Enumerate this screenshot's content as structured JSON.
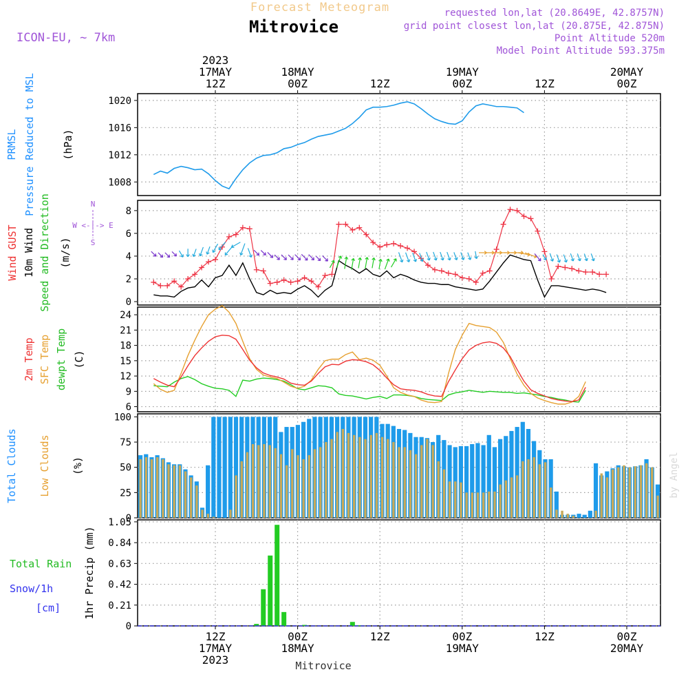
{
  "header": {
    "super_title": "Forecast Meteogram",
    "location": "Mitrovice",
    "model": "ICON-EU, ~ 7km",
    "requested": "requested lon,lat (20.8649E, 42.8757N)",
    "grid_point": "grid point closest lon,lat (20.875E, 42.875N)",
    "point_alt": "Point Altitude 520m",
    "model_alt": "Model Point Altitude 593.375m",
    "footer_location": "Mitrovice",
    "credit": "by Angel"
  },
  "time_axis": {
    "hours_total": 64,
    "top_labels": [
      {
        "h": 9,
        "lines": [
          "2023",
          "17MAY",
          "12Z"
        ]
      },
      {
        "h": 21,
        "lines": [
          "18MAY",
          "00Z"
        ]
      },
      {
        "h": 33,
        "lines": [
          "12Z"
        ]
      },
      {
        "h": 45,
        "lines": [
          "19MAY",
          "00Z"
        ]
      },
      {
        "h": 57,
        "lines": [
          "12Z"
        ]
      },
      {
        "h": 69,
        "lines": [
          "20MAY",
          "00Z"
        ]
      }
    ],
    "bottom_labels": [
      {
        "h": 9,
        "lines": [
          "12Z",
          "17MAY",
          "2023"
        ]
      },
      {
        "h": 21,
        "lines": [
          "00Z",
          "18MAY"
        ]
      },
      {
        "h": 33,
        "lines": [
          "12Z"
        ]
      },
      {
        "h": 45,
        "lines": [
          "00Z",
          "19MAY"
        ]
      },
      {
        "h": 57,
        "lines": [
          "12Z"
        ]
      },
      {
        "h": 69,
        "lines": [
          "00Z",
          "20MAY"
        ]
      }
    ]
  },
  "panel_labels": {
    "pressure": {
      "lines": [
        [
          "PRMSL",
          "#1e90ff"
        ],
        [
          "Pressure Reduced to MSL",
          "#1e90ff"
        ],
        [
          "(hPa)",
          "#000000"
        ]
      ]
    },
    "wind": {
      "lines": [
        [
          "Wind GUST",
          "#ee3333"
        ],
        [
          "10m Wind",
          "#000000"
        ],
        [
          "Speed and Direction",
          "#22bb22"
        ],
        [
          "(m/s)",
          "#000000"
        ]
      ],
      "compass": "W <-|-> E",
      "compass_n": "N",
      "compass_s": "S"
    },
    "temp": {
      "lines": [
        [
          "2m Temp",
          "#ee3333"
        ],
        [
          "SFC Temp",
          "#e6a030"
        ],
        [
          "dewpt Temp",
          "#22bb22"
        ],
        [
          "(C)",
          "#000000"
        ]
      ]
    },
    "clouds": {
      "lines": [
        [
          "Total Clouds",
          "#1e90ff"
        ],
        [
          "Low Clouds",
          "#e6a030"
        ],
        [
          "(%)",
          "#000000"
        ]
      ]
    },
    "precip": {
      "total_rain": "Total  Rain",
      "snow": "Snow/1h",
      "snow_unit": "[cm]",
      "ylabel": "1hr Precip (mm)"
    }
  },
  "colors": {
    "pressure": "#1e9bea",
    "gust": "#ee3344",
    "wind": "#000000",
    "t2m": "#ee3333",
    "tsfc": "#e6a030",
    "dewpt": "#22cc22",
    "total_clouds": "#1e9bea",
    "low_clouds": "#c8aa5a",
    "rain": "#22cc22",
    "snow": "#3333ee"
  },
  "chart_data": [
    {
      "type": "line",
      "panel": "pressure",
      "ylim": [
        1006,
        1021
      ],
      "yticks": [
        "1008",
        "1012",
        "1016",
        "1020"
      ],
      "series": [
        {
          "name": "PRMSL",
          "values": [
            1009.1,
            1009.6,
            1009.3,
            1010.0,
            1010.3,
            1010.1,
            1009.8,
            1009.9,
            1009.2,
            1008.2,
            1007.4,
            1007.0,
            1008.5,
            1009.8,
            1010.8,
            1011.5,
            1011.9,
            1012.0,
            1012.3,
            1012.9,
            1013.1,
            1013.5,
            1013.8,
            1014.3,
            1014.7,
            1014.9,
            1015.1,
            1015.5,
            1015.9,
            1016.6,
            1017.5,
            1018.6,
            1019.0,
            1019.0,
            1019.1,
            1019.3,
            1019.6,
            1019.8,
            1019.5,
            1018.8,
            1018.0,
            1017.3,
            1016.9,
            1016.6,
            1016.5,
            1017.0,
            1018.3,
            1019.2,
            1019.5,
            1019.3,
            1019.1,
            1019.1,
            1019.0,
            1018.9,
            1018.2
          ]
        }
      ]
    },
    {
      "type": "line",
      "panel": "wind",
      "ylim": [
        -0.3,
        8.9
      ],
      "yticks": [
        "0",
        "2",
        "4",
        "6",
        "8"
      ],
      "series": [
        {
          "name": "Wind GUST",
          "values": [
            1.7,
            1.4,
            1.4,
            1.8,
            1.3,
            2.0,
            2.4,
            3.0,
            3.5,
            3.7,
            4.8,
            5.7,
            5.9,
            6.5,
            6.4,
            2.8,
            2.7,
            1.6,
            1.7,
            1.9,
            1.7,
            1.8,
            2.1,
            1.8,
            1.3,
            2.3,
            2.4,
            6.8,
            6.8,
            6.3,
            6.5,
            5.9,
            5.2,
            4.8,
            5.0,
            5.1,
            4.9,
            4.7,
            4.4,
            3.8,
            3.2,
            2.8,
            2.7,
            2.5,
            2.4,
            2.1,
            2.0,
            1.7,
            2.5,
            2.7,
            4.6,
            6.8,
            8.1,
            8.0,
            7.5,
            7.3,
            6.2,
            4.4,
            2.0,
            3.1,
            3.0,
            2.9,
            2.7,
            2.6,
            2.6,
            2.4,
            2.4
          ]
        },
        {
          "name": "10m Wind",
          "values": [
            0.6,
            0.5,
            0.5,
            0.4,
            0.9,
            1.2,
            1.3,
            1.9,
            1.3,
            2.1,
            2.3,
            3.2,
            2.3,
            3.4,
            2.0,
            0.8,
            0.6,
            1.0,
            0.7,
            0.8,
            0.7,
            1.1,
            1.4,
            1.0,
            0.4,
            1.0,
            1.4,
            3.6,
            3.2,
            2.9,
            2.5,
            2.9,
            2.4,
            2.2,
            2.7,
            2.1,
            2.4,
            2.2,
            1.9,
            1.7,
            1.6,
            1.6,
            1.5,
            1.5,
            1.3,
            1.2,
            1.1,
            1.0,
            1.1,
            1.8,
            2.6,
            3.4,
            4.1,
            3.9,
            3.7,
            3.6,
            1.9,
            0.4,
            1.4,
            1.4,
            1.3,
            1.2,
            1.1,
            1.0,
            1.1,
            1.0,
            0.8
          ]
        }
      ],
      "arrows": {
        "x": [
          0,
          1,
          2,
          3,
          4,
          5,
          6,
          7,
          8,
          9,
          10,
          11,
          12,
          13,
          14,
          15,
          16,
          17,
          18,
          19,
          20,
          21,
          22,
          23,
          24,
          25,
          26,
          27,
          28,
          29,
          30,
          31,
          32,
          33,
          34,
          35,
          36,
          37,
          38,
          39,
          40,
          41,
          42,
          43,
          44,
          45,
          46,
          47,
          48,
          49,
          50,
          51,
          52,
          53,
          54,
          55,
          56,
          57,
          58,
          59,
          60,
          61,
          62,
          63,
          64
        ],
        "level": [
          4.2,
          4.1,
          4.1,
          4.2,
          4.2,
          4.3,
          4.3,
          4.4,
          4.5,
          4.7,
          4.9,
          4.5,
          5.0,
          4.6,
          4.3,
          4.3,
          4.3,
          4.1,
          3.9,
          3.9,
          3.9,
          3.9,
          3.9,
          3.9,
          3.8,
          3.8,
          3.3,
          3.5,
          3.4,
          3.3,
          3.4,
          3.4,
          3.4,
          3.3,
          3.3,
          3.4,
          3.9,
          3.9,
          3.9,
          3.9,
          4.0,
          4.0,
          4.0,
          4.0,
          4.0,
          4.0,
          4.0,
          4.1,
          4.3,
          4.3,
          4.3,
          4.3,
          4.3,
          4.3,
          4.2,
          4.1,
          3.9,
          3.9,
          3.9,
          3.8,
          3.8,
          3.9,
          3.9,
          3.9,
          3.9
        ],
        "dir_deg": [
          135,
          135,
          135,
          135,
          150,
          180,
          200,
          200,
          200,
          210,
          220,
          220,
          240,
          200,
          160,
          135,
          135,
          135,
          135,
          135,
          135,
          135,
          135,
          135,
          135,
          135,
          30,
          20,
          10,
          10,
          10,
          10,
          10,
          10,
          20,
          30,
          160,
          160,
          160,
          160,
          160,
          160,
          160,
          160,
          160,
          160,
          160,
          170,
          90,
          90,
          90,
          90,
          90,
          90,
          100,
          110,
          140,
          150,
          160,
          160,
          160,
          160,
          160,
          160,
          160
        ]
      }
    },
    {
      "type": "line",
      "panel": "temp",
      "ylim": [
        5,
        25.5
      ],
      "yticks": [
        "6",
        "9",
        "12",
        "15",
        "18",
        "21",
        "24"
      ],
      "series": [
        {
          "name": "2m Temp",
          "values": [
            11.5,
            10.8,
            10.2,
            9.9,
            11.8,
            14.0,
            16.0,
            17.5,
            18.8,
            19.7,
            20.0,
            19.9,
            19.2,
            17.2,
            15.1,
            13.6,
            12.6,
            12.1,
            11.8,
            11.4,
            10.6,
            10.3,
            10.2,
            11.0,
            12.5,
            13.8,
            14.3,
            14.2,
            14.9,
            15.2,
            15.1,
            14.8,
            14.2,
            13.1,
            11.6,
            10.3,
            9.5,
            9.3,
            9.2,
            8.9,
            8.4,
            8.1,
            8.0,
            10.9,
            13.2,
            15.4,
            17.1,
            18.0,
            18.5,
            18.7,
            18.4,
            17.5,
            15.8,
            13.3,
            11.0,
            9.3,
            8.6,
            8.1,
            7.6,
            7.3,
            7.1,
            7.0,
            7.3,
            9.8
          ]
        },
        {
          "name": "SFC Temp",
          "values": [
            10.5,
            9.4,
            8.8,
            9.2,
            12.5,
            16.0,
            19.0,
            21.7,
            24.0,
            25.1,
            25.8,
            24.5,
            22.3,
            18.8,
            15.4,
            13.3,
            12.2,
            11.8,
            11.5,
            10.8,
            10.0,
            9.6,
            10.0,
            11.2,
            13.3,
            15.0,
            15.3,
            15.3,
            16.2,
            16.7,
            15.2,
            15.5,
            15.1,
            14.1,
            12.0,
            9.7,
            8.8,
            8.3,
            8.0,
            7.3,
            6.9,
            6.8,
            7.0,
            12.5,
            17.2,
            20.0,
            22.3,
            21.9,
            21.7,
            21.5,
            20.6,
            18.6,
            15.4,
            12.4,
            10.2,
            8.6,
            7.7,
            7.2,
            6.8,
            6.5,
            6.5,
            6.9,
            8.0,
            10.9
          ]
        },
        {
          "name": "dewpt Temp",
          "values": [
            10.1,
            10.0,
            9.9,
            10.8,
            11.5,
            11.9,
            11.3,
            10.5,
            10.0,
            9.6,
            9.5,
            9.2,
            8.0,
            11.2,
            11.0,
            11.4,
            11.6,
            11.5,
            11.3,
            11.0,
            10.3,
            9.5,
            9.3,
            9.7,
            10.1,
            10.0,
            9.7,
            8.5,
            8.2,
            8.1,
            7.8,
            7.5,
            7.8,
            8.0,
            7.6,
            8.3,
            8.3,
            8.2,
            8.0,
            7.6,
            7.4,
            7.3,
            7.2,
            8.3,
            8.7,
            8.9,
            9.2,
            9.0,
            8.8,
            9.0,
            8.9,
            8.8,
            8.8,
            8.6,
            8.7,
            8.5,
            8.3,
            8.0,
            7.8,
            7.5,
            7.3,
            7.0,
            6.9,
            9.2
          ]
        }
      ]
    },
    {
      "type": "bar",
      "panel": "clouds",
      "ylim": [
        0,
        103
      ],
      "yticks": [
        "0",
        "25",
        "50",
        "75",
        "100"
      ],
      "series": [
        {
          "name": "Total Clouds",
          "values": [
            62,
            63,
            60,
            62,
            59,
            55,
            53,
            53,
            48,
            42,
            36,
            10,
            52,
            100,
            100,
            100,
            100,
            100,
            100,
            100,
            100,
            100,
            100,
            100,
            100,
            85,
            90,
            90,
            92,
            95,
            98,
            100,
            100,
            100,
            100,
            100,
            100,
            100,
            100,
            100,
            100,
            100,
            100,
            93,
            93,
            91,
            88,
            87,
            84,
            80,
            80,
            79,
            75,
            82,
            77,
            72,
            70,
            71,
            71,
            73,
            74,
            72,
            82,
            70,
            78,
            81,
            86,
            90,
            95,
            88,
            76,
            67,
            58,
            58,
            26,
            3,
            3,
            3,
            4,
            3,
            7,
            54,
            42,
            46,
            49,
            52,
            51,
            50,
            51,
            52,
            58,
            50,
            33
          ]
        },
        {
          "name": "Low Clouds",
          "values": [
            58,
            60,
            58,
            60,
            58,
            53,
            52,
            52,
            46,
            40,
            32,
            8,
            4,
            1,
            0,
            0,
            8,
            42,
            56,
            65,
            73,
            72,
            73,
            72,
            69,
            63,
            52,
            68,
            62,
            58,
            62,
            68,
            70,
            75,
            78,
            85,
            88,
            84,
            82,
            80,
            78,
            82,
            84,
            80,
            78,
            75,
            70,
            70,
            67,
            63,
            72,
            78,
            72,
            56,
            48,
            36,
            36,
            35,
            25,
            25,
            25,
            25,
            26,
            26,
            33,
            37,
            40,
            42,
            56,
            58,
            60,
            53,
            55,
            30,
            8,
            7,
            4,
            2,
            0,
            0,
            0,
            7,
            44,
            40,
            48,
            50,
            52,
            50,
            51,
            52,
            54,
            50,
            22
          ]
        }
      ]
    },
    {
      "type": "bar",
      "panel": "precip",
      "ylim": [
        0,
        1.07
      ],
      "yticks": [
        "0",
        "0.21",
        "0.42",
        "0.63",
        "0.84",
        "1.05"
      ],
      "series": [
        {
          "name": "Total Rain",
          "hours": [
            15,
            16,
            17,
            18,
            19,
            22,
            29,
            30
          ],
          "values": [
            0.02,
            0.37,
            0.71,
            1.02,
            0.14,
            0.01,
            0.04,
            0.005
          ]
        },
        {
          "name": "Snow/1h",
          "hours": [],
          "values": []
        }
      ]
    }
  ]
}
